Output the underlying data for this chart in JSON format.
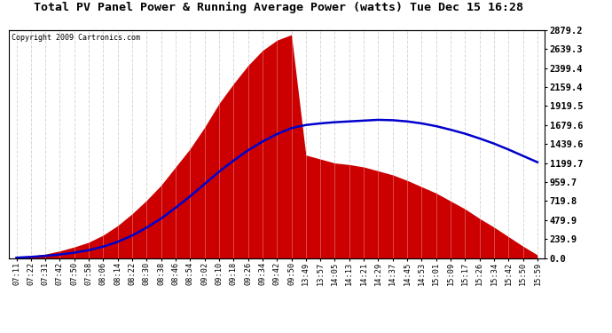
{
  "title": "Total PV Panel Power & Running Average Power (watts) Tue Dec 15 16:28",
  "copyright": "Copyright 2009 Cartronics.com",
  "background_color": "#ffffff",
  "plot_bg_color": "#ffffff",
  "grid_color": "#c8c8c8",
  "fill_color": "#cc0000",
  "line_color": "#0000cc",
  "yticks": [
    0.0,
    239.9,
    479.9,
    719.8,
    959.7,
    1199.7,
    1439.6,
    1679.6,
    1919.5,
    2159.4,
    2399.4,
    2639.3,
    2879.2
  ],
  "ylim": [
    0,
    2879.2
  ],
  "x_labels": [
    "07:11",
    "07:22",
    "07:31",
    "07:42",
    "07:50",
    "07:58",
    "08:06",
    "08:14",
    "08:22",
    "08:30",
    "08:38",
    "08:46",
    "08:54",
    "09:02",
    "09:10",
    "09:18",
    "09:26",
    "09:34",
    "09:42",
    "09:50",
    "13:49",
    "13:57",
    "14:05",
    "14:13",
    "14:21",
    "14:29",
    "14:37",
    "14:45",
    "14:53",
    "15:01",
    "15:09",
    "15:17",
    "15:26",
    "15:34",
    "15:42",
    "15:50",
    "15:59"
  ],
  "pv_values": [
    10,
    25,
    50,
    90,
    140,
    200,
    290,
    410,
    560,
    730,
    920,
    1150,
    1380,
    1650,
    1950,
    2200,
    2430,
    2620,
    2750,
    2820,
    1300,
    1250,
    1200,
    1180,
    1150,
    1100,
    1050,
    980,
    900,
    820,
    720,
    620,
    500,
    390,
    270,
    150,
    40
  ],
  "avg_values": [
    5,
    15,
    28,
    45,
    68,
    100,
    145,
    205,
    285,
    385,
    500,
    635,
    780,
    935,
    1090,
    1230,
    1360,
    1470,
    1565,
    1640,
    1680,
    1700,
    1715,
    1725,
    1735,
    1745,
    1740,
    1725,
    1700,
    1665,
    1620,
    1570,
    1510,
    1445,
    1370,
    1290,
    1210
  ]
}
